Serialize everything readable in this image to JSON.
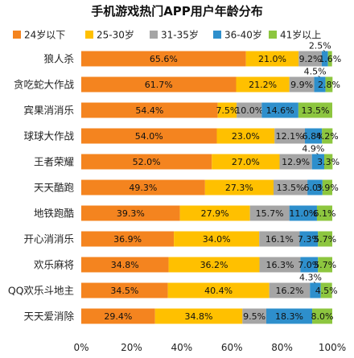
{
  "chart_data": {
    "type": "bar",
    "orientation": "horizontal",
    "stacked": true,
    "title": "手机游戏热门APP用户年龄分布",
    "categories": [
      "狼人杀",
      "贪吃蛇大作战",
      "宾果消消乐",
      "球球大作战",
      "王者荣耀",
      "天天酷跑",
      "地铁跑酷",
      "开心消消乐",
      "欢乐麻将",
      "QQ欢乐斗地主",
      "天天爱消除"
    ],
    "series": [
      {
        "name": "24岁以下",
        "color": "#F4841F",
        "values": [
          65.6,
          61.7,
          54.4,
          54.0,
          52.0,
          49.3,
          39.3,
          36.9,
          34.8,
          34.5,
          29.4
        ]
      },
      {
        "name": "25-30岁",
        "color": "#FFC000",
        "values": [
          21.0,
          21.2,
          7.5,
          23.0,
          27.0,
          27.3,
          27.9,
          34.0,
          36.2,
          40.4,
          34.8
        ]
      },
      {
        "name": "31-35岁",
        "color": "#A5A5A5",
        "values": [
          9.2,
          9.9,
          10.0,
          12.1,
          12.9,
          13.5,
          15.7,
          16.1,
          16.3,
          16.2,
          9.5
        ]
      },
      {
        "name": "36-40岁",
        "color": "#2E8FCC",
        "values": [
          2.5,
          4.5,
          14.6,
          6.8,
          4.9,
          6.0,
          11.0,
          7.3,
          7.0,
          4.3,
          18.3
        ]
      },
      {
        "name": "41岁以上",
        "color": "#8DC63F",
        "values": [
          1.6,
          2.8,
          13.5,
          4.2,
          3.3,
          3.9,
          6.1,
          5.7,
          5.7,
          4.5,
          8.0
        ]
      }
    ],
    "data_labels": [
      [
        "65.6%",
        "21.0%",
        "9.2%",
        "2.5%",
        "1.6%"
      ],
      [
        "61.7%",
        "21.2%",
        "9.9%",
        "4.5%",
        "2.8%"
      ],
      [
        "54.4%",
        "7.5%",
        "10.0%",
        "14.6%",
        "13.5%"
      ],
      [
        "54.0%",
        "23.0%",
        "12.1%",
        "6.8%",
        "4.2%"
      ],
      [
        "52.0%",
        "27.0%",
        "12.9%",
        "4.9%",
        "3.3%"
      ],
      [
        "49.3%",
        "27.3%",
        "13.5%",
        "6.0%",
        "3.9%"
      ],
      [
        "39.3%",
        "27.9%",
        "15.7%",
        "11.0%",
        "6.1%"
      ],
      [
        "36.9%",
        "34.0%",
        "16.1%",
        "7.3%",
        "5.7%"
      ],
      [
        "34.8%",
        "36.2%",
        "16.3%",
        "7.0%",
        "5.7%"
      ],
      [
        "34.5%",
        "40.4%",
        "16.2%",
        "4.3%",
        "4.5%"
      ],
      [
        "29.4%",
        "34.8%",
        "9.5%",
        "18.3%",
        "8.0%"
      ]
    ],
    "x_ticks": [
      "0%",
      "20%",
      "40%",
      "60%",
      "80%",
      "100%"
    ],
    "xlim": [
      0,
      100
    ],
    "legend_position": "top",
    "grid": false
  }
}
